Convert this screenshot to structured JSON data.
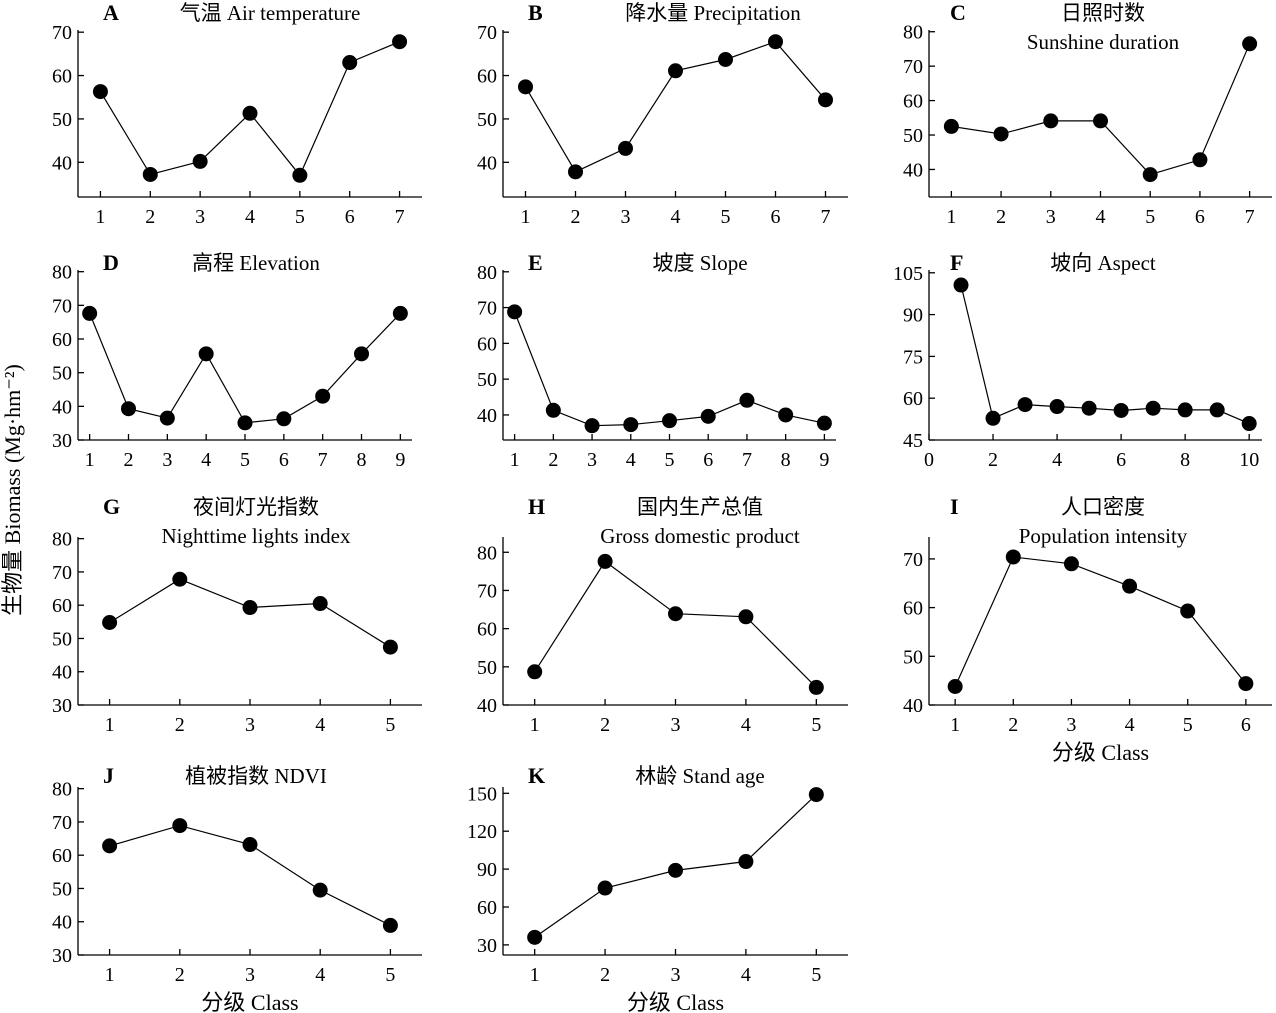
{
  "figure": {
    "ylabel": "生物量 Biomass (Mg·hm⁻²)",
    "xlabel": "分级 Class"
  },
  "chart_data": [
    {
      "id": "A",
      "type": "line",
      "letter": "A",
      "title_lines": [
        "气温 Air temperature"
      ],
      "x": [
        1,
        2,
        3,
        4,
        5,
        6,
        7
      ],
      "y": [
        56.3,
        37.2,
        40.2,
        51.3,
        37.0,
        63.0,
        67.8
      ],
      "xticks": [
        1,
        2,
        3,
        4,
        5,
        6,
        7
      ],
      "yticks": [
        40,
        50,
        60,
        70
      ],
      "xlim": [
        0.55,
        7.45
      ],
      "ylim": [
        32,
        70.5
      ],
      "xlabel": "",
      "ylabel": ""
    },
    {
      "id": "B",
      "type": "line",
      "letter": "B",
      "title_lines": [
        "降水量 Precipitation"
      ],
      "x": [
        1,
        2,
        3,
        4,
        5,
        6,
        7
      ],
      "y": [
        57.4,
        37.8,
        43.2,
        61.1,
        63.7,
        67.8,
        54.4
      ],
      "xticks": [
        1,
        2,
        3,
        4,
        5,
        6,
        7
      ],
      "yticks": [
        40,
        50,
        60,
        70
      ],
      "xlim": [
        0.55,
        7.45
      ],
      "ylim": [
        32,
        70.5
      ],
      "xlabel": "",
      "ylabel": ""
    },
    {
      "id": "C",
      "type": "line",
      "letter": "C",
      "title_lines": [
        "日照时数",
        "Sunshine duration"
      ],
      "x": [
        1,
        2,
        3,
        4,
        5,
        6,
        7
      ],
      "y": [
        52.5,
        50.3,
        54.1,
        54.1,
        38.5,
        42.8,
        76.5
      ],
      "xticks": [
        1,
        2,
        3,
        4,
        5,
        6,
        7
      ],
      "yticks": [
        40,
        50,
        60,
        70,
        80
      ],
      "xlim": [
        0.55,
        7.45
      ],
      "ylim": [
        32,
        80.5
      ],
      "xlabel": "",
      "ylabel": ""
    },
    {
      "id": "D",
      "type": "line",
      "letter": "D",
      "title_lines": [
        "高程 Elevation"
      ],
      "x": [
        1,
        2,
        3,
        4,
        5,
        6,
        7,
        8,
        9
      ],
      "y": [
        67.6,
        39.3,
        36.5,
        55.6,
        35.1,
        36.3,
        43.0,
        55.6,
        67.6
      ],
      "xticks": [
        1,
        2,
        3,
        4,
        5,
        6,
        7,
        8,
        9
      ],
      "yticks": [
        30,
        40,
        50,
        60,
        70,
        80
      ],
      "xlim": [
        0.7,
        9.3
      ],
      "ylim": [
        30,
        80.5
      ],
      "xlabel": "",
      "ylabel": ""
    },
    {
      "id": "E",
      "type": "line",
      "letter": "E",
      "title_lines": [
        "坡度 Slope"
      ],
      "x": [
        1,
        2,
        3,
        4,
        5,
        6,
        7,
        8,
        9
      ],
      "y": [
        68.8,
        41.3,
        37.0,
        37.3,
        38.4,
        39.6,
        44.1,
        40.0,
        37.7
      ],
      "xticks": [
        1,
        2,
        3,
        4,
        5,
        6,
        7,
        8,
        9
      ],
      "yticks": [
        40,
        50,
        60,
        70,
        80
      ],
      "xlim": [
        0.7,
        9.3
      ],
      "ylim": [
        33,
        80.5
      ],
      "xlabel": "",
      "ylabel": ""
    },
    {
      "id": "F",
      "type": "line",
      "letter": "F",
      "title_lines": [
        "坡向 Aspect"
      ],
      "x": [
        1,
        2,
        3,
        4,
        5,
        6,
        7,
        8,
        9,
        10
      ],
      "y": [
        100.6,
        52.8,
        57.7,
        57.0,
        56.4,
        55.6,
        56.4,
        55.8,
        55.8,
        50.9
      ],
      "xticks": [
        0,
        2,
        4,
        6,
        8,
        10
      ],
      "yticks": [
        45,
        60,
        75,
        90,
        105
      ],
      "xlim": [
        0,
        10.4
      ],
      "ylim": [
        45,
        106
      ],
      "xlabel": "",
      "ylabel": ""
    },
    {
      "id": "G",
      "type": "line",
      "letter": "G",
      "title_lines": [
        "夜间灯光指数",
        "Nighttime lights index"
      ],
      "x": [
        1,
        2,
        3,
        4,
        5
      ],
      "y": [
        54.8,
        67.8,
        59.3,
        60.5,
        47.4
      ],
      "xticks": [
        1,
        2,
        3,
        4,
        5
      ],
      "yticks": [
        30,
        40,
        50,
        60,
        70,
        80
      ],
      "xlim": [
        0.55,
        5.45
      ],
      "ylim": [
        30,
        80.5
      ],
      "xlabel": "",
      "ylabel": ""
    },
    {
      "id": "H",
      "type": "line",
      "letter": "H",
      "title_lines": [
        "国内生产总值",
        "Gross domestic product"
      ],
      "x": [
        1,
        2,
        3,
        4,
        5
      ],
      "y": [
        48.7,
        77.6,
        63.9,
        63.1,
        44.6
      ],
      "xticks": [
        1,
        2,
        3,
        4,
        5
      ],
      "yticks": [
        40,
        50,
        60,
        70,
        80
      ],
      "xlim": [
        0.55,
        5.45
      ],
      "ylim": [
        40,
        84
      ],
      "xlabel": "",
      "ylabel": ""
    },
    {
      "id": "I",
      "type": "line",
      "letter": "I",
      "title_lines": [
        "人口密度",
        "Population intensity"
      ],
      "x": [
        1,
        2,
        3,
        4,
        5,
        6
      ],
      "y": [
        43.8,
        70.4,
        69.0,
        64.4,
        59.3,
        44.4
      ],
      "xticks": [
        1,
        2,
        3,
        4,
        5,
        6
      ],
      "yticks": [
        40,
        50,
        60,
        70
      ],
      "xlim": [
        0.55,
        6.45
      ],
      "ylim": [
        40,
        74.5
      ],
      "xlabel": "分级 Class",
      "ylabel": ""
    },
    {
      "id": "J",
      "type": "line",
      "letter": "J",
      "title_lines": [
        "植被指数 NDVI"
      ],
      "x": [
        1,
        2,
        3,
        4,
        5
      ],
      "y": [
        62.8,
        68.9,
        63.2,
        49.5,
        38.9
      ],
      "xticks": [
        1,
        2,
        3,
        4,
        5
      ],
      "yticks": [
        30,
        40,
        50,
        60,
        70,
        80
      ],
      "xlim": [
        0.55,
        5.45
      ],
      "ylim": [
        30,
        80.5
      ],
      "xlabel": "分级 Class",
      "ylabel": ""
    },
    {
      "id": "K",
      "type": "line",
      "letter": "K",
      "title_lines": [
        "林龄 Stand age"
      ],
      "x": [
        1,
        2,
        3,
        4,
        5
      ],
      "y": [
        36,
        75,
        89,
        96,
        149
      ],
      "xticks": [
        1,
        2,
        3,
        4,
        5
      ],
      "yticks": [
        30,
        60,
        90,
        120,
        150
      ],
      "xlim": [
        0.55,
        5.45
      ],
      "ylim": [
        22,
        155
      ],
      "xlabel": "分级 Class",
      "ylabel": ""
    }
  ]
}
